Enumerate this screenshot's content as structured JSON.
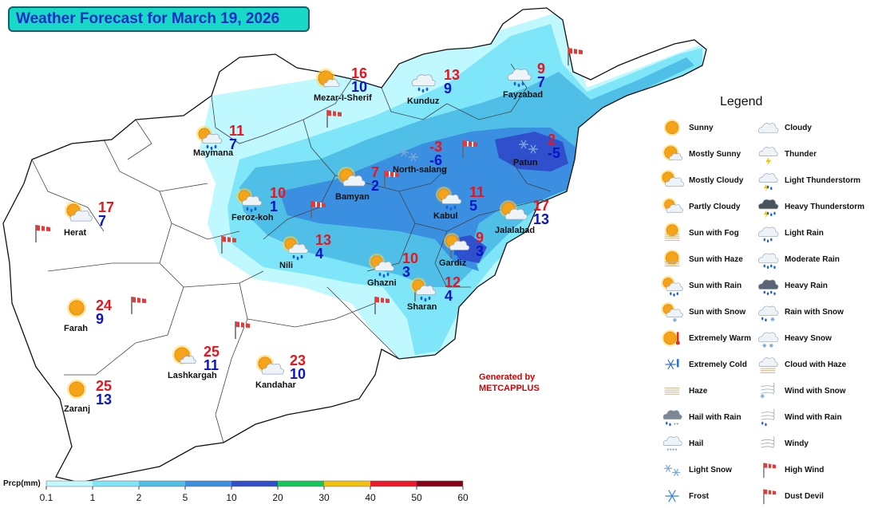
{
  "title": "Weather Forecast for March 19, 2026",
  "generated": {
    "line1": "Generated by",
    "line2": "METCAPPLUS"
  },
  "colors": {
    "max_temp": "#e8141e",
    "min_temp": "#0a14c8",
    "label": "#111111",
    "title_bg": "#18d8c8",
    "title_text": "#1a2cc8"
  },
  "cities": [
    {
      "id": "mezar",
      "name": "Mezar-I-Sherif",
      "max": "16",
      "min": "10",
      "icon": "mostly-sunny-icon"
    },
    {
      "id": "kunduz",
      "name": "Kunduz",
      "max": "13",
      "min": "9",
      "icon": "light-rain-icon"
    },
    {
      "id": "fayzabad",
      "name": "Fayzabad",
      "max": "9",
      "min": "7",
      "icon": "light-rain-icon"
    },
    {
      "id": "maymana",
      "name": "Maymana",
      "max": "11",
      "min": "7",
      "icon": "sun-with-rain-icon"
    },
    {
      "id": "northsalang",
      "name": "North-salang",
      "max": "-3",
      "min": "-6",
      "icon": "light-snow-icon"
    },
    {
      "id": "patun",
      "name": "Patun",
      "max": "2",
      "min": "-5",
      "icon": "light-snow-icon"
    },
    {
      "id": "bamyan",
      "name": "Bamyan",
      "max": "7",
      "min": "2",
      "icon": "mostly-cloudy-icon"
    },
    {
      "id": "ferozkoh",
      "name": "Feroz-koh",
      "max": "10",
      "min": "1",
      "icon": "sun-with-rain-icon"
    },
    {
      "id": "kabul",
      "name": "Kabul",
      "max": "11",
      "min": "5",
      "icon": "sun-with-rain-icon"
    },
    {
      "id": "jalalabad",
      "name": "Jalalabad",
      "max": "17",
      "min": "13",
      "icon": "mostly-cloudy-icon"
    },
    {
      "id": "herat",
      "name": "Herat",
      "max": "17",
      "min": "7",
      "icon": "mostly-cloudy-icon"
    },
    {
      "id": "nili",
      "name": "Nili",
      "max": "13",
      "min": "4",
      "icon": "sun-with-rain-icon"
    },
    {
      "id": "gardiz",
      "name": "Gardiz",
      "max": "9",
      "min": "3",
      "icon": "sun-with-rain-icon"
    },
    {
      "id": "ghazni",
      "name": "Ghazni",
      "max": "10",
      "min": "3",
      "icon": "sun-with-rain-icon"
    },
    {
      "id": "sharan",
      "name": "Sharan",
      "max": "12",
      "min": "4",
      "icon": "sun-with-rain-icon"
    },
    {
      "id": "farah",
      "name": "Farah",
      "max": "24",
      "min": "9",
      "icon": "sunny-icon"
    },
    {
      "id": "lashkargah",
      "name": "Lashkargah",
      "max": "25",
      "min": "11",
      "icon": "mostly-sunny-icon"
    },
    {
      "id": "kandahar",
      "name": "Kandahar",
      "max": "23",
      "min": "10",
      "icon": "mostly-cloudy-icon"
    },
    {
      "id": "zaranj",
      "name": "Zaranj",
      "max": "25",
      "min": "13",
      "icon": "sunny-icon"
    }
  ],
  "wind_markers_count": 12,
  "legend": {
    "title": "Legend",
    "items": [
      {
        "label": "Sunny",
        "icon": "sunny-icon"
      },
      {
        "label": "Cloudy",
        "icon": "cloudy-icon"
      },
      {
        "label": "Mostly Sunny",
        "icon": "mostly-sunny-icon"
      },
      {
        "label": "Thunder",
        "icon": "thunder-icon"
      },
      {
        "label": "Mostly Cloudy",
        "icon": "mostly-cloudy-icon"
      },
      {
        "label": "Light Thunderstorm",
        "icon": "light-thunderstorm-icon"
      },
      {
        "label": "Partly Cloudy",
        "icon": "partly-cloudy-icon"
      },
      {
        "label": "Heavy Thunderstorm",
        "icon": "heavy-thunderstorm-icon"
      },
      {
        "label": "Sun with Fog",
        "icon": "sun-with-fog-icon"
      },
      {
        "label": "Light Rain",
        "icon": "light-rain-icon"
      },
      {
        "label": "Sun with Haze",
        "icon": "sun-with-haze-icon"
      },
      {
        "label": "Moderate Rain",
        "icon": "moderate-rain-icon"
      },
      {
        "label": "Sun with Rain",
        "icon": "sun-with-rain-icon"
      },
      {
        "label": "Heavy Rain",
        "icon": "heavy-rain-icon"
      },
      {
        "label": "Sun with Snow",
        "icon": "sun-with-snow-icon"
      },
      {
        "label": "Rain with Snow",
        "icon": "rain-with-snow-icon"
      },
      {
        "label": "Extremely Warm",
        "icon": "extremely-warm-icon"
      },
      {
        "label": "Heavy Snow",
        "icon": "heavy-snow-icon"
      },
      {
        "label": "Extremely Cold",
        "icon": "extremely-cold-icon"
      },
      {
        "label": "Cloud with Haze",
        "icon": "cloud-with-haze-icon"
      },
      {
        "label": "Haze",
        "icon": "haze-icon"
      },
      {
        "label": "Wind with Snow",
        "icon": "wind-with-snow-icon"
      },
      {
        "label": "Hail with Rain",
        "icon": "hail-with-rain-icon"
      },
      {
        "label": "Wind with Rain",
        "icon": "wind-with-rain-icon"
      },
      {
        "label": "Hail",
        "icon": "hail-icon"
      },
      {
        "label": "Windy",
        "icon": "windy-icon"
      },
      {
        "label": "Light Snow",
        "icon": "light-snow-icon"
      },
      {
        "label": "High Wind",
        "icon": "high-wind-icon"
      },
      {
        "label": "Frost",
        "icon": "frost-icon"
      },
      {
        "label": "Dust Devil",
        "icon": "dust-devil-icon"
      }
    ]
  },
  "scale": {
    "label": "Prcp(mm)",
    "ticks": [
      "0.1",
      "1",
      "2",
      "5",
      "10",
      "20",
      "30",
      "40",
      "50",
      "60"
    ],
    "colors": [
      "#bff8ff",
      "#7ee6f8",
      "#4fbfe8",
      "#3a8fe0",
      "#2f4fcc",
      "#12c85a",
      "#f2c20a",
      "#f0162a",
      "#8a0018"
    ]
  }
}
